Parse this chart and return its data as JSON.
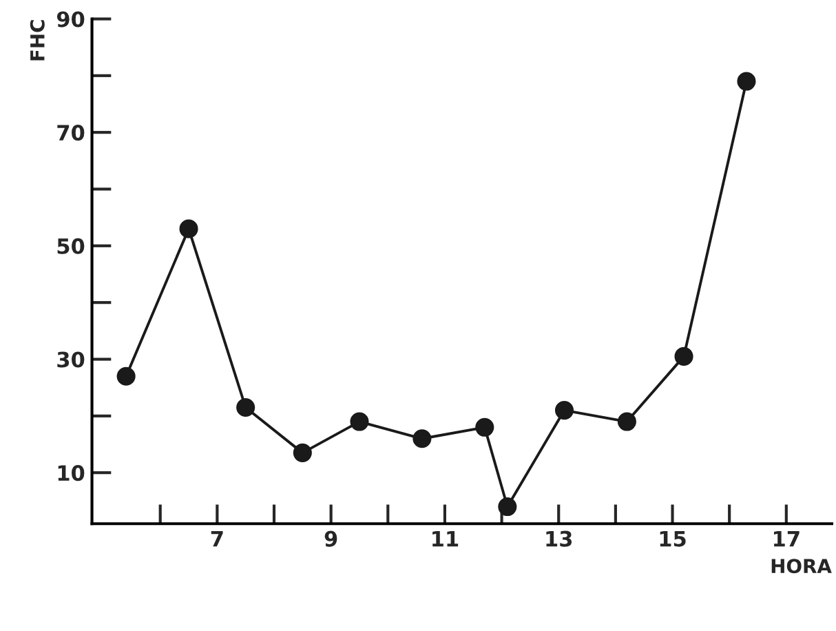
{
  "chart_data": {
    "type": "line",
    "xlabel": "HORA",
    "ylabel": "FHC",
    "x": [
      5.4,
      6.5,
      7.5,
      8.5,
      9.5,
      10.6,
      11.7,
      12.1,
      13.1,
      14.2,
      15.2,
      16.3
    ],
    "values": [
      27,
      53,
      21.5,
      13.5,
      19,
      16,
      18,
      4,
      21,
      19,
      30.5,
      79
    ],
    "color": "#1a1a1a",
    "marker": "circle",
    "line_style": "solid",
    "xlim": [
      4.8,
      17.8
    ],
    "ylim": [
      1,
      90
    ],
    "xticks": [
      {
        "value": 6,
        "label": null
      },
      7,
      {
        "value": 8,
        "label": null
      },
      9,
      {
        "value": 10,
        "label": null
      },
      11,
      {
        "value": 12,
        "label": null
      },
      13,
      {
        "value": 14,
        "label": null
      },
      15,
      {
        "value": 16,
        "label": null
      },
      17
    ],
    "yticks": [
      10,
      {
        "value": 20,
        "label": null
      },
      30,
      {
        "value": 40,
        "label": null
      },
      50,
      {
        "value": 60,
        "label": null
      },
      70,
      {
        "value": 80,
        "label": null
      },
      90
    ],
    "grid": false,
    "legend": false
  }
}
